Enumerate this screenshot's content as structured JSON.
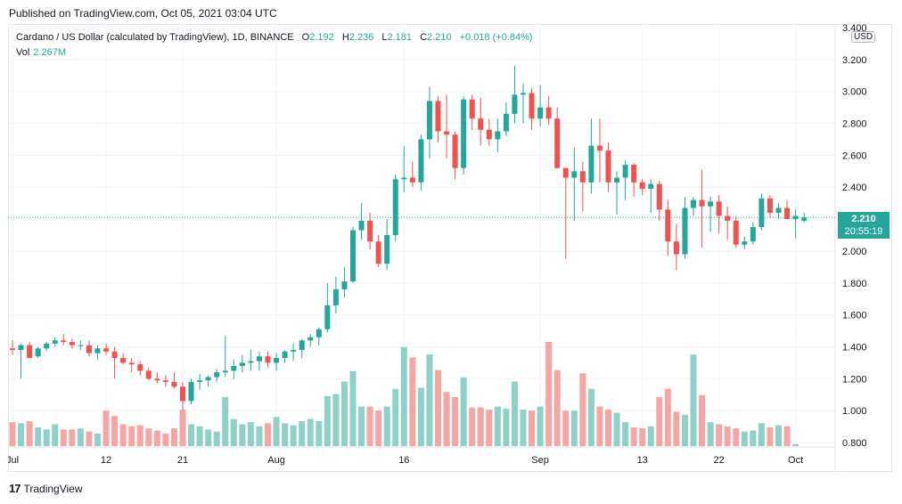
{
  "header": {
    "published": "Published on TradingView.com, Oct 05, 2021 03:04 UTC"
  },
  "legend": {
    "title": "Cardano / US Dollar (calculated by TradingView), 1D, BINANCE",
    "o_label": "O",
    "o_value": "2.192",
    "h_label": "H",
    "h_value": "2.236",
    "l_label": "L",
    "l_value": "2.181",
    "c_label": "C",
    "c_value": "2.210",
    "change": "+0.018 (+0.84%)",
    "vol_label": "Vol",
    "vol_value": "2.267M"
  },
  "currency_badge": "USD",
  "last_price": {
    "price": "2.210",
    "countdown": "20:55:19"
  },
  "footer": {
    "brand": "TradingView"
  },
  "colors": {
    "up": "#26a69a",
    "down": "#ef5350",
    "up_vol": "#8fd1c9",
    "down_vol": "#f4a5a4",
    "grid": "#f0f3fa"
  },
  "chart_data": {
    "type": "candlestick",
    "symbol": "ADAUSD",
    "interval": "1D",
    "y_axis_ticks": [
      "3.400",
      "3.200",
      "3.000",
      "2.800",
      "2.600",
      "2.400",
      "2.200",
      "2.000",
      "1.800",
      "1.600",
      "1.400",
      "1.200",
      "1.000",
      "0.800"
    ],
    "ylim": [
      0.8,
      3.4
    ],
    "x_axis_labels": [
      {
        "label": "Jul",
        "index": 0
      },
      {
        "label": "12",
        "index": 11
      },
      {
        "label": "21",
        "index": 20
      },
      {
        "label": "Aug",
        "index": 31
      },
      {
        "label": "16",
        "index": 46
      },
      {
        "label": "Sep",
        "index": 62
      },
      {
        "label": "13",
        "index": 74
      },
      {
        "label": "22",
        "index": 83
      },
      {
        "label": "Oct",
        "index": 92
      }
    ],
    "candles": [
      [
        1.39,
        1.44,
        1.35,
        1.38
      ],
      [
        1.38,
        1.42,
        1.2,
        1.41
      ],
      [
        1.41,
        1.43,
        1.35,
        1.33
      ],
      [
        1.34,
        1.4,
        1.33,
        1.39
      ],
      [
        1.39,
        1.43,
        1.37,
        1.42
      ],
      [
        1.42,
        1.46,
        1.4,
        1.44
      ],
      [
        1.44,
        1.48,
        1.41,
        1.43
      ],
      [
        1.43,
        1.45,
        1.39,
        1.41
      ],
      [
        1.41,
        1.44,
        1.38,
        1.41
      ],
      [
        1.41,
        1.44,
        1.34,
        1.36
      ],
      [
        1.36,
        1.41,
        1.32,
        1.39
      ],
      [
        1.39,
        1.42,
        1.35,
        1.37
      ],
      [
        1.37,
        1.4,
        1.2,
        1.33
      ],
      [
        1.33,
        1.36,
        1.29,
        1.3
      ],
      [
        1.3,
        1.33,
        1.24,
        1.29
      ],
      [
        1.29,
        1.31,
        1.22,
        1.25
      ],
      [
        1.25,
        1.27,
        1.19,
        1.2
      ],
      [
        1.2,
        1.24,
        1.17,
        1.19
      ],
      [
        1.19,
        1.22,
        1.15,
        1.18
      ],
      [
        1.18,
        1.24,
        1.14,
        1.15
      ],
      [
        1.15,
        1.18,
        1.0,
        1.06
      ],
      [
        1.06,
        1.2,
        1.04,
        1.18
      ],
      [
        1.18,
        1.23,
        1.13,
        1.19
      ],
      [
        1.19,
        1.22,
        1.15,
        1.21
      ],
      [
        1.21,
        1.26,
        1.18,
        1.24
      ],
      [
        1.24,
        1.47,
        1.21,
        1.25
      ],
      [
        1.25,
        1.32,
        1.2,
        1.28
      ],
      [
        1.28,
        1.35,
        1.24,
        1.3
      ],
      [
        1.3,
        1.38,
        1.25,
        1.31
      ],
      [
        1.31,
        1.37,
        1.25,
        1.34
      ],
      [
        1.34,
        1.37,
        1.27,
        1.3
      ],
      [
        1.3,
        1.36,
        1.25,
        1.33
      ],
      [
        1.33,
        1.38,
        1.3,
        1.37
      ],
      [
        1.37,
        1.42,
        1.31,
        1.38
      ],
      [
        1.38,
        1.45,
        1.33,
        1.44
      ],
      [
        1.44,
        1.48,
        1.4,
        1.46
      ],
      [
        1.46,
        1.52,
        1.41,
        1.51
      ],
      [
        1.51,
        1.8,
        1.49,
        1.66
      ],
      [
        1.66,
        1.84,
        1.61,
        1.76
      ],
      [
        1.76,
        1.9,
        1.71,
        1.81
      ],
      [
        1.81,
        2.15,
        1.8,
        2.13
      ],
      [
        2.13,
        2.3,
        2.07,
        2.19
      ],
      [
        2.19,
        2.24,
        2.01,
        2.06
      ],
      [
        2.06,
        2.1,
        1.9,
        1.92
      ],
      [
        1.92,
        2.2,
        1.88,
        2.1
      ],
      [
        2.1,
        2.48,
        2.06,
        2.45
      ],
      [
        2.45,
        2.66,
        2.37,
        2.46
      ],
      [
        2.46,
        2.56,
        2.4,
        2.43
      ],
      [
        2.43,
        2.73,
        2.38,
        2.7
      ],
      [
        2.7,
        3.03,
        2.58,
        2.94
      ],
      [
        2.94,
        2.97,
        2.68,
        2.75
      ],
      [
        2.75,
        2.98,
        2.58,
        2.73
      ],
      [
        2.73,
        2.75,
        2.45,
        2.52
      ],
      [
        2.52,
        2.97,
        2.48,
        2.95
      ],
      [
        2.95,
        2.98,
        2.76,
        2.83
      ],
      [
        2.83,
        2.96,
        2.66,
        2.76
      ],
      [
        2.76,
        2.83,
        2.66,
        2.7
      ],
      [
        2.7,
        2.83,
        2.62,
        2.75
      ],
      [
        2.75,
        2.93,
        2.72,
        2.86
      ],
      [
        2.86,
        3.16,
        2.8,
        2.98
      ],
      [
        2.98,
        3.05,
        2.8,
        2.99
      ],
      [
        2.99,
        3.02,
        2.76,
        2.83
      ],
      [
        2.83,
        3.04,
        2.78,
        2.9
      ],
      [
        2.9,
        2.97,
        2.79,
        2.83
      ],
      [
        2.83,
        2.9,
        2.52,
        2.52
      ],
      [
        2.52,
        2.52,
        1.95,
        2.46
      ],
      [
        2.46,
        2.65,
        2.19,
        2.5
      ],
      [
        2.5,
        2.56,
        2.25,
        2.43
      ],
      [
        2.43,
        2.83,
        2.36,
        2.66
      ],
      [
        2.66,
        2.83,
        2.43,
        2.63
      ],
      [
        2.63,
        2.68,
        2.37,
        2.43
      ],
      [
        2.43,
        2.5,
        2.23,
        2.46
      ],
      [
        2.46,
        2.57,
        2.32,
        2.54
      ],
      [
        2.54,
        2.55,
        2.34,
        2.43
      ],
      [
        2.43,
        2.45,
        2.35,
        2.39
      ],
      [
        2.39,
        2.45,
        2.24,
        2.42
      ],
      [
        2.42,
        2.44,
        2.19,
        2.26
      ],
      [
        2.26,
        2.32,
        1.97,
        2.06
      ],
      [
        2.06,
        2.17,
        1.88,
        1.98
      ],
      [
        1.98,
        2.34,
        1.95,
        2.27
      ],
      [
        2.27,
        2.34,
        2.22,
        2.32
      ],
      [
        2.32,
        2.51,
        2.02,
        2.28
      ],
      [
        2.28,
        2.34,
        2.12,
        2.31
      ],
      [
        2.31,
        2.35,
        2.11,
        2.22
      ],
      [
        2.22,
        2.28,
        2.07,
        2.19
      ],
      [
        2.19,
        2.22,
        2.02,
        2.04
      ],
      [
        2.04,
        2.09,
        2.01,
        2.06
      ],
      [
        2.06,
        2.18,
        2.04,
        2.15
      ],
      [
        2.15,
        2.36,
        2.13,
        2.33
      ],
      [
        2.33,
        2.35,
        2.21,
        2.24
      ],
      [
        2.24,
        2.3,
        2.2,
        2.27
      ],
      [
        2.27,
        2.32,
        2.2,
        2.2
      ],
      [
        2.2,
        2.26,
        2.08,
        2.22
      ],
      [
        2.19,
        2.24,
        2.18,
        2.21
      ]
    ],
    "volume_relative": [
      0.23,
      0.22,
      0.24,
      0.18,
      0.16,
      0.21,
      0.16,
      0.16,
      0.17,
      0.14,
      0.12,
      0.34,
      0.29,
      0.21,
      0.19,
      0.2,
      0.17,
      0.15,
      0.12,
      0.17,
      0.35,
      0.21,
      0.19,
      0.16,
      0.14,
      0.47,
      0.26,
      0.21,
      0.23,
      0.19,
      0.22,
      0.28,
      0.22,
      0.2,
      0.24,
      0.26,
      0.24,
      0.48,
      0.5,
      0.62,
      0.72,
      0.38,
      0.38,
      0.34,
      0.38,
      0.55,
      0.95,
      0.85,
      0.56,
      0.88,
      0.73,
      0.52,
      0.47,
      0.66,
      0.37,
      0.37,
      0.35,
      0.38,
      0.36,
      0.62,
      0.35,
      0.34,
      0.38,
      1.0,
      0.73,
      0.34,
      0.34,
      0.7,
      0.55,
      0.38,
      0.35,
      0.32,
      0.23,
      0.18,
      0.17,
      0.19,
      0.47,
      0.55,
      0.33,
      0.3,
      0.88,
      0.49,
      0.23,
      0.21,
      0.19,
      0.17,
      0.14,
      0.15,
      0.22,
      0.18,
      0.2,
      0.19,
      0.02
    ]
  }
}
